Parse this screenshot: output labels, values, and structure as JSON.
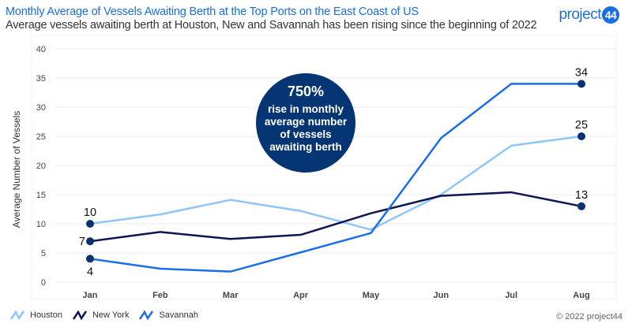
{
  "header": {
    "title": "Monthly Average of Vessels Awaiting Berth at the Top Ports on the East Coast of US",
    "subtitle": "Average vessels awaiting berth at Houston, New and Savannah has been rising since the beginning of 2022",
    "logo_text": "project",
    "logo_badge": "44"
  },
  "footer": {
    "copyright": "© 2022 project44"
  },
  "callout": {
    "headline": "750%",
    "lines": [
      "rise in monthly",
      "average number",
      "of vessels",
      "awaiting berth"
    ],
    "color": "#063573"
  },
  "chart_data": {
    "type": "line",
    "title": "Monthly Average of Vessels Awaiting Berth at the Top Ports on the East Coast of US",
    "xlabel": "",
    "ylabel": "Average Number of Vessels",
    "categories": [
      "Jan",
      "Feb",
      "Mar",
      "Apr",
      "May",
      "Jun",
      "Jul",
      "Aug"
    ],
    "ylim": [
      0,
      40
    ],
    "yticks": [
      0,
      5,
      10,
      15,
      20,
      25,
      30,
      35,
      40
    ],
    "grid": true,
    "legend": "bottom-left",
    "series": [
      {
        "name": "Houston",
        "color": "#8ec5fb",
        "values": [
          10,
          11.6,
          14.1,
          12.2,
          9.0,
          15.0,
          23.4,
          25
        ],
        "labels": {
          "0": "10",
          "7": "25"
        }
      },
      {
        "name": "New York",
        "color": "#0d1650",
        "values": [
          7,
          8.6,
          7.4,
          8.1,
          11.8,
          14.8,
          15.4,
          13
        ],
        "labels": {
          "0": "7",
          "7": "13"
        }
      },
      {
        "name": "Savannah",
        "color": "#1a6fe8",
        "values": [
          4,
          2.3,
          1.8,
          5.1,
          8.4,
          24.7,
          34,
          34
        ],
        "labels": {
          "0": "4",
          "7": "34"
        }
      }
    ]
  }
}
